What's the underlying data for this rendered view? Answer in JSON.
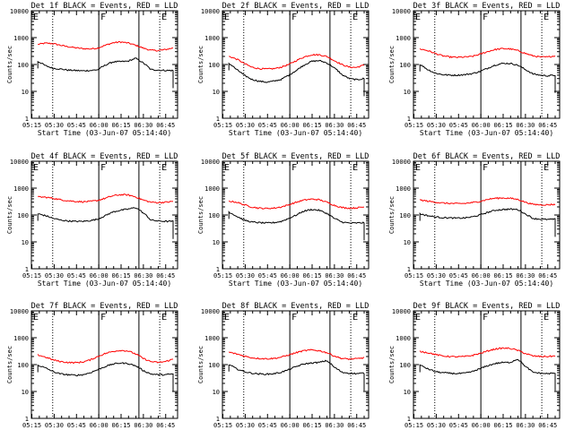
{
  "chart_data": [
    {
      "type": "line",
      "title": "Det 1f BLACK = Events, RED = LLD",
      "xlabel": "Start Time (03-Jun-07 05:14:40)",
      "ylabel": "Counts/sec",
      "x_ticks": [
        "05:15",
        "05:30",
        "05:45",
        "06:00",
        "06:15",
        "06:30",
        "06:45"
      ],
      "y_ticks": [
        "1",
        "10",
        "100",
        "1000",
        "10000"
      ],
      "yscale": "log",
      "ylim": [
        1,
        10000
      ],
      "xlim": [
        "05:14:40",
        "06:53:00"
      ],
      "markers": [
        "E",
        "F",
        "E"
      ],
      "legend": "in title",
      "series": [
        {
          "color": "red",
          "values": [
            560,
            620,
            600,
            520,
            460,
            420,
            390,
            380,
            410,
            520,
            640,
            690,
            630,
            520,
            410,
            340,
            330,
            360,
            410
          ]
        },
        {
          "color": "black",
          "values": [
            130,
            90,
            72,
            68,
            62,
            60,
            58,
            60,
            64,
            95,
            125,
            128,
            132,
            170,
            115,
            65,
            62,
            60,
            60
          ]
        }
      ],
      "series_colors": [
        "#ff0000",
        "#000000"
      ]
    },
    {
      "type": "line",
      "title": "Det 2f BLACK = Events, RED = LLD",
      "xlabel": "Start Time (03-Jun-07 05:14:40)",
      "ylabel": "Counts/sec",
      "x_ticks": [
        "05:15",
        "05:30",
        "05:45",
        "06:00",
        "06:15",
        "06:30",
        "06:45"
      ],
      "y_ticks": [
        "1",
        "10",
        "100",
        "1000",
        "10000"
      ],
      "yscale": "log",
      "ylim": [
        1,
        10000
      ],
      "xlim": [
        "05:14:40",
        "06:53:00"
      ],
      "markers": [
        "E",
        "F",
        "E"
      ],
      "legend": "in title",
      "series": [
        {
          "color": "red",
          "values": [
            200,
            160,
            110,
            80,
            70,
            68,
            70,
            80,
            100,
            140,
            190,
            230,
            230,
            200,
            140,
            100,
            80,
            78,
            95
          ]
        },
        {
          "color": "black",
          "values": [
            110,
            65,
            40,
            28,
            24,
            22,
            24,
            28,
            40,
            60,
            95,
            130,
            140,
            115,
            75,
            42,
            30,
            27,
            30
          ]
        }
      ],
      "series_colors": [
        "#ff0000",
        "#000000"
      ]
    },
    {
      "type": "line",
      "title": "Det 3f BLACK = Events, RED = LLD",
      "xlabel": "Start Time (03-Jun-07 05:14:40)",
      "ylabel": "Counts/sec",
      "x_ticks": [
        "05:15",
        "05:30",
        "05:45",
        "06:00",
        "06:15",
        "06:30",
        "06:45"
      ],
      "y_ticks": [
        "1",
        "10",
        "100",
        "1000",
        "10000"
      ],
      "yscale": "log",
      "ylim": [
        1,
        10000
      ],
      "xlim": [
        "05:14:40",
        "06:53:00"
      ],
      "markers": [
        "E",
        "F",
        "E"
      ],
      "legend": "in title",
      "series": [
        {
          "color": "red",
          "values": [
            380,
            330,
            260,
            210,
            190,
            185,
            190,
            200,
            240,
            300,
            360,
            390,
            380,
            330,
            260,
            210,
            190,
            190,
            210
          ]
        },
        {
          "color": "black",
          "values": [
            100,
            65,
            48,
            42,
            40,
            40,
            42,
            46,
            55,
            72,
            95,
            110,
            110,
            95,
            65,
            45,
            40,
            38,
            40
          ]
        }
      ],
      "series_colors": [
        "#ff0000",
        "#000000"
      ]
    },
    {
      "type": "line",
      "title": "Det 4f BLACK = Events, RED = LLD",
      "xlabel": "Start Time (03-Jun-07 05:14:40)",
      "ylabel": "Counts/sec",
      "x_ticks": [
        "05:15",
        "05:30",
        "05:45",
        "06:00",
        "06:15",
        "06:30",
        "06:45"
      ],
      "y_ticks": [
        "1",
        "10",
        "100",
        "1000",
        "10000"
      ],
      "yscale": "log",
      "ylim": [
        1,
        10000
      ],
      "xlim": [
        "05:14:40",
        "06:53:00"
      ],
      "markers": [
        "E",
        "F",
        "E"
      ],
      "legend": "in title",
      "series": [
        {
          "color": "red",
          "values": [
            470,
            460,
            420,
            370,
            340,
            320,
            310,
            320,
            350,
            420,
            520,
            570,
            560,
            470,
            360,
            300,
            290,
            300,
            320
          ]
        },
        {
          "color": "black",
          "values": [
            110,
            95,
            75,
            65,
            60,
            58,
            58,
            62,
            70,
            95,
            130,
            150,
            165,
            190,
            120,
            65,
            60,
            58,
            58
          ]
        }
      ],
      "series_colors": [
        "#ff0000",
        "#000000"
      ]
    },
    {
      "type": "line",
      "title": "Det 5f BLACK = Events, RED = LLD",
      "xlabel": "Start Time (03-Jun-07 05:14:40)",
      "ylabel": "Counts/sec",
      "x_ticks": [
        "05:15",
        "05:30",
        "05:45",
        "06:00",
        "06:15",
        "06:30",
        "06:45"
      ],
      "y_ticks": [
        "1",
        "10",
        "100",
        "1000",
        "10000"
      ],
      "yscale": "log",
      "ylim": [
        1,
        10000
      ],
      "xlim": [
        "05:14:40",
        "06:53:00"
      ],
      "markers": [
        "E",
        "F",
        "E"
      ],
      "legend": "in title",
      "series": [
        {
          "color": "red",
          "values": [
            330,
            300,
            240,
            200,
            180,
            175,
            180,
            200,
            240,
            300,
            360,
            390,
            370,
            300,
            230,
            190,
            180,
            185,
            200
          ]
        },
        {
          "color": "black",
          "values": [
            130,
            90,
            65,
            55,
            52,
            50,
            52,
            58,
            75,
            100,
            140,
            160,
            150,
            115,
            75,
            55,
            50,
            50,
            52
          ]
        }
      ],
      "series_colors": [
        "#ff0000",
        "#000000"
      ]
    },
    {
      "type": "line",
      "title": "Det 6f BLACK = Events, RED = LLD",
      "xlabel": "Start Time (03-Jun-07 05:14:40)",
      "ylabel": "Counts/sec",
      "x_ticks": [
        "05:15",
        "05:30",
        "05:45",
        "06:00",
        "06:15",
        "06:30",
        "06:45"
      ],
      "y_ticks": [
        "1",
        "10",
        "100",
        "1000",
        "10000"
      ],
      "yscale": "log",
      "ylim": [
        1,
        10000
      ],
      "xlim": [
        "05:14:40",
        "06:53:00"
      ],
      "markers": [
        "E",
        "F",
        "E"
      ],
      "legend": "in title",
      "series": [
        {
          "color": "red",
          "values": [
            360,
            330,
            300,
            280,
            270,
            265,
            270,
            290,
            320,
            380,
            420,
            430,
            420,
            380,
            300,
            250,
            240,
            240,
            250
          ]
        },
        {
          "color": "black",
          "values": [
            110,
            95,
            85,
            80,
            78,
            76,
            78,
            85,
            100,
            125,
            150,
            160,
            165,
            160,
            110,
            75,
            70,
            68,
            70
          ]
        }
      ],
      "series_colors": [
        "#ff0000",
        "#000000"
      ]
    },
    {
      "type": "line",
      "title": "Det 7f BLACK = Events, RED = LLD",
      "xlabel": "Start Time (03-Jun-07 05:14:40)",
      "ylabel": "Counts/sec",
      "x_ticks": [
        "05:15",
        "05:30",
        "05:45",
        "06:00",
        "06:15",
        "06:30",
        "06:45"
      ],
      "y_ticks": [
        "1",
        "10",
        "100",
        "1000",
        "10000"
      ],
      "yscale": "log",
      "ylim": [
        1,
        10000
      ],
      "xlim": [
        "05:14:40",
        "06:53:00"
      ],
      "markers": [
        "E",
        "F",
        "E"
      ],
      "legend": "in title",
      "series": [
        {
          "color": "red",
          "values": [
            230,
            190,
            150,
            130,
            120,
            118,
            125,
            150,
            200,
            260,
            310,
            340,
            320,
            250,
            170,
            130,
            120,
            130,
            160
          ]
        },
        {
          "color": "black",
          "values": [
            95,
            75,
            55,
            45,
            42,
            40,
            42,
            50,
            65,
            85,
            105,
            115,
            110,
            90,
            60,
            45,
            42,
            42,
            45
          ]
        }
      ],
      "series_colors": [
        "#ff0000",
        "#000000"
      ]
    },
    {
      "type": "line",
      "title": "Det 8f BLACK = Events, RED = LLD",
      "xlabel": "Start Time (03-Jun-07 05:14:40)",
      "ylabel": "Counts/sec",
      "x_ticks": [
        "05:15",
        "05:30",
        "05:45",
        "06:00",
        "06:15",
        "06:30",
        "06:45"
      ],
      "y_ticks": [
        "1",
        "10",
        "100",
        "1000",
        "10000"
      ],
      "yscale": "log",
      "ylim": [
        1,
        10000
      ],
      "xlim": [
        "05:14:40",
        "06:53:00"
      ],
      "markers": [
        "E",
        "F",
        "E"
      ],
      "legend": "in title",
      "series": [
        {
          "color": "red",
          "values": [
            290,
            250,
            210,
            180,
            170,
            165,
            170,
            190,
            230,
            280,
            330,
            350,
            330,
            280,
            210,
            170,
            160,
            165,
            180
          ]
        },
        {
          "color": "black",
          "values": [
            100,
            70,
            55,
            48,
            45,
            44,
            46,
            52,
            65,
            85,
            105,
            115,
            120,
            140,
            80,
            52,
            48,
            46,
            48
          ]
        }
      ],
      "series_colors": [
        "#ff0000",
        "#000000"
      ]
    },
    {
      "type": "line",
      "title": "Det 9f BLACK = Events, RED = LLD",
      "xlabel": "Start Time (03-Jun-07 05:14:40)",
      "ylabel": "Counts/sec",
      "x_ticks": [
        "05:15",
        "05:30",
        "05:45",
        "06:00",
        "06:15",
        "06:30",
        "06:45"
      ],
      "y_ticks": [
        "1",
        "10",
        "100",
        "1000",
        "10000"
      ],
      "yscale": "log",
      "ylim": [
        1,
        10000
      ],
      "xlim": [
        "05:14:40",
        "06:53:00"
      ],
      "markers": [
        "E",
        "F",
        "E"
      ],
      "legend": "in title",
      "series": [
        {
          "color": "red",
          "values": [
            310,
            280,
            240,
            210,
            200,
            195,
            200,
            220,
            260,
            320,
            380,
            410,
            400,
            340,
            260,
            210,
            200,
            200,
            210
          ]
        },
        {
          "color": "black",
          "values": [
            95,
            70,
            55,
            50,
            48,
            46,
            48,
            55,
            70,
            90,
            110,
            120,
            120,
            160,
            85,
            52,
            48,
            46,
            48
          ]
        }
      ],
      "series_colors": [
        "#ff0000",
        "#000000"
      ]
    }
  ]
}
